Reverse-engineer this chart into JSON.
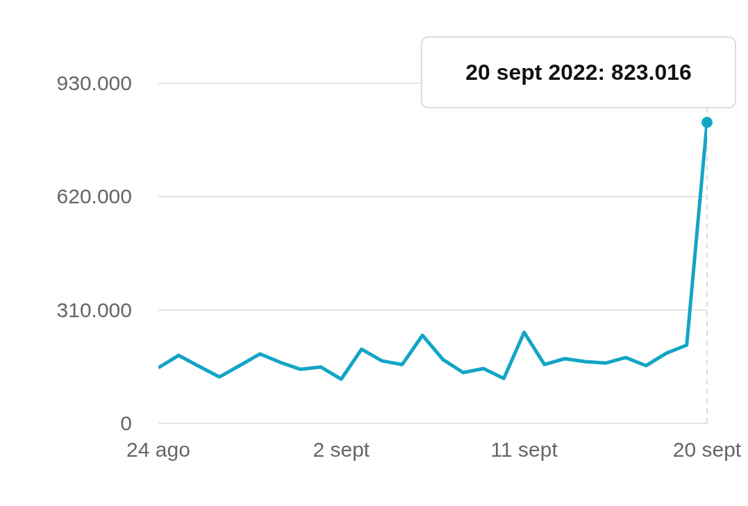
{
  "chart_data": {
    "type": "line",
    "x": [
      "2022-08-24",
      "2022-08-25",
      "2022-08-26",
      "2022-08-27",
      "2022-08-28",
      "2022-08-29",
      "2022-08-30",
      "2022-08-31",
      "2022-09-01",
      "2022-09-02",
      "2022-09-03",
      "2022-09-04",
      "2022-09-05",
      "2022-09-06",
      "2022-09-07",
      "2022-09-08",
      "2022-09-09",
      "2022-09-10",
      "2022-09-11",
      "2022-09-12",
      "2022-09-13",
      "2022-09-14",
      "2022-09-15",
      "2022-09-16",
      "2022-09-17",
      "2022-09-18",
      "2022-09-19",
      "2022-09-20"
    ],
    "series": [
      {
        "color": "#12a5c6",
        "values": [
          152000,
          186000,
          156000,
          127000,
          158000,
          190000,
          167000,
          148000,
          154000,
          121000,
          203000,
          171000,
          161000,
          241000,
          175000,
          139000,
          150000,
          123000,
          249000,
          161000,
          177000,
          169000,
          165000,
          180000,
          158000,
          192000,
          214000,
          823016
        ]
      }
    ],
    "xlim": [
      "2022-08-24",
      "2022-09-20"
    ],
    "xticks": [
      {
        "value": "2022-08-24",
        "label": "24 ago"
      },
      {
        "value": "2022-09-02",
        "label": "2 sept"
      },
      {
        "value": "2022-09-11",
        "label": "11 sept"
      },
      {
        "value": "2022-09-20",
        "label": "20 sept"
      }
    ],
    "ylim": [
      0,
      930000
    ],
    "yticks": [
      0,
      {
        "value": 310000,
        "label": "310.000"
      },
      {
        "value": 620000,
        "label": "620.000"
      },
      {
        "value": 930000,
        "label": "930.000"
      }
    ],
    "grid": "y",
    "marker": "none",
    "line_style": "solid",
    "ref_lines": [
      {
        "axis": "x",
        "value": "2022-09-20",
        "color": "#dddddd",
        "line_style": "dashed"
      }
    ],
    "annotations": [
      {
        "text": "20 sept 2022: 823.016",
        "x": "2022-09-20",
        "y": 823016
      }
    ]
  }
}
